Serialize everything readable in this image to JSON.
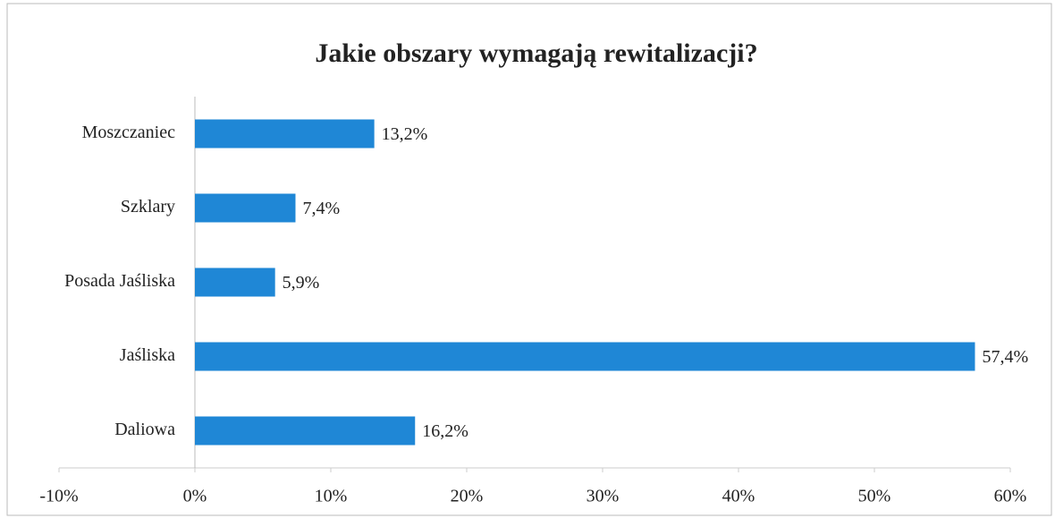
{
  "chart_data": {
    "type": "bar",
    "orientation": "horizontal",
    "title": "Jakie obszary wymagają rewitalizacji?",
    "categories": [
      "Moszczaniec",
      "Szklary",
      "Posada Jaśliska",
      "Jaśliska",
      "Daliowa"
    ],
    "values": [
      13.2,
      7.4,
      5.9,
      57.4,
      16.2
    ],
    "value_labels": [
      "13,2%",
      "7,4%",
      "5,9%",
      "57,4%",
      "16,2%"
    ],
    "color": "#1f87d6",
    "xlim": [
      -10,
      60
    ],
    "xticks": [
      {
        "value": -10,
        "label": "-10%"
      },
      {
        "value": 0,
        "label": "0%"
      },
      {
        "value": 10,
        "label": "10%"
      },
      {
        "value": 20,
        "label": "20%"
      },
      {
        "value": 30,
        "label": "30%"
      },
      {
        "value": 40,
        "label": "40%"
      },
      {
        "value": 50,
        "label": "50%"
      },
      {
        "value": 60,
        "label": "60%"
      }
    ],
    "grid": false
  }
}
